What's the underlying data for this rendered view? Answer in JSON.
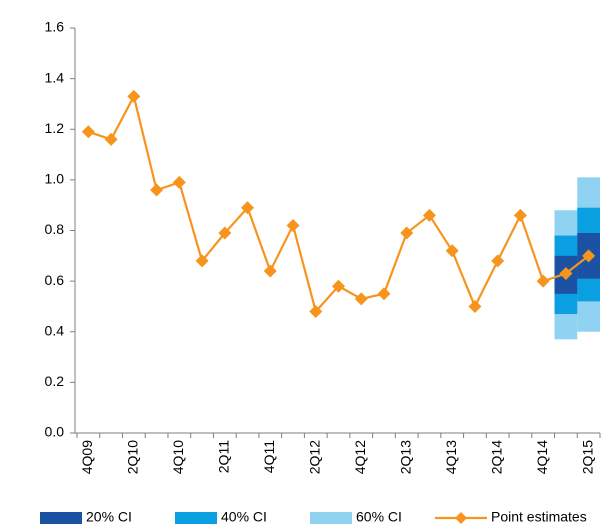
{
  "chart_data": {
    "type": "line",
    "categories": [
      "4Q09",
      null,
      "2Q10",
      null,
      "4Q10",
      null,
      "2Q11",
      null,
      "4Q11",
      null,
      "2Q12",
      null,
      "4Q12",
      null,
      "2Q13",
      null,
      "4Q13",
      null,
      "2Q14",
      null,
      "4Q14",
      null,
      "2Q15"
    ],
    "series": [
      {
        "name": "Point estimates",
        "color": "#f7941d",
        "values": [
          1.19,
          1.16,
          1.33,
          0.96,
          0.99,
          0.68,
          0.79,
          0.89,
          0.64,
          0.82,
          0.48,
          0.58,
          0.53,
          0.55,
          0.79,
          0.86,
          0.72,
          0.5,
          0.68,
          0.86,
          0.6,
          0.63,
          0.7
        ]
      }
    ],
    "bands": [
      {
        "name": "60% CI",
        "color": "#8fd2f2",
        "low": [
          null,
          null,
          null,
          null,
          null,
          null,
          null,
          null,
          null,
          null,
          null,
          null,
          null,
          null,
          null,
          null,
          null,
          null,
          null,
          null,
          null,
          0.37,
          0.4
        ],
        "high": [
          null,
          null,
          null,
          null,
          null,
          null,
          null,
          null,
          null,
          null,
          null,
          null,
          null,
          null,
          null,
          null,
          null,
          null,
          null,
          null,
          null,
          0.88,
          1.01
        ]
      },
      {
        "name": "40% CI",
        "color": "#0a9fe0",
        "low": [
          null,
          null,
          null,
          null,
          null,
          null,
          null,
          null,
          null,
          null,
          null,
          null,
          null,
          null,
          null,
          null,
          null,
          null,
          null,
          null,
          null,
          0.47,
          0.52
        ],
        "high": [
          null,
          null,
          null,
          null,
          null,
          null,
          null,
          null,
          null,
          null,
          null,
          null,
          null,
          null,
          null,
          null,
          null,
          null,
          null,
          null,
          null,
          0.78,
          0.89
        ]
      },
      {
        "name": "20% CI",
        "color": "#1b52a3",
        "low": [
          null,
          null,
          null,
          null,
          null,
          null,
          null,
          null,
          null,
          null,
          null,
          null,
          null,
          null,
          null,
          null,
          null,
          null,
          null,
          null,
          null,
          0.55,
          0.61
        ],
        "high": [
          null,
          null,
          null,
          null,
          null,
          null,
          null,
          null,
          null,
          null,
          null,
          null,
          null,
          null,
          null,
          null,
          null,
          null,
          null,
          null,
          null,
          0.7,
          0.79
        ]
      }
    ],
    "ylim": [
      0,
      1.6
    ],
    "yticks": [
      {
        "value": 0,
        "label": "0.0"
      },
      0.2,
      0.4,
      0.6,
      0.8,
      {
        "value": 1,
        "label": "1.0"
      },
      1.2,
      1.4,
      1.6
    ],
    "grid": false
  }
}
